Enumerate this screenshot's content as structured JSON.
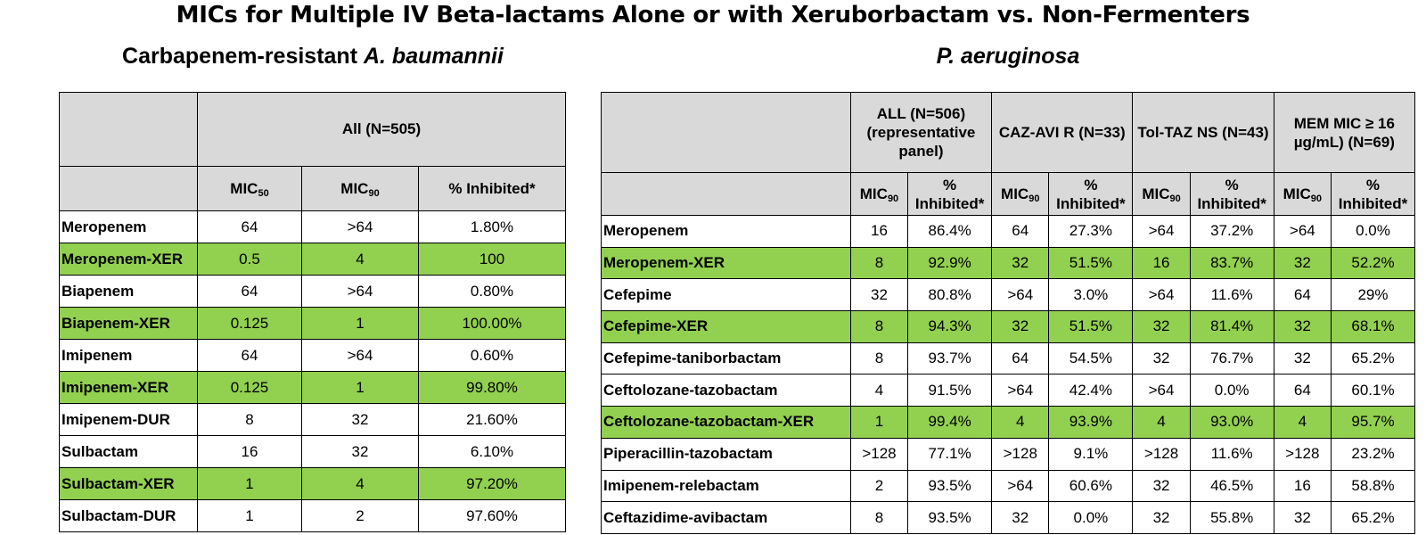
{
  "title": "MICs for Multiple IV Beta-lactams Alone or with Xeruborbactam vs. Non-Fermenters",
  "left": {
    "subtitle_prefix": "Carbapenem-resistant ",
    "subtitle_italic": "A. baumannii",
    "group_header": "All (N=505)",
    "col_headers": [
      {
        "base": "MIC",
        "sub": "50"
      },
      {
        "base": "MIC",
        "sub": "90"
      },
      {
        "base": "% Inhibited*",
        "sub": ""
      }
    ],
    "rows": [
      {
        "name": "Meropenem",
        "values": [
          "64",
          ">64",
          "1.80%"
        ],
        "xer": false
      },
      {
        "name": "Meropenem-XER",
        "values": [
          "0.5",
          "4",
          "100"
        ],
        "xer": true
      },
      {
        "name": "Biapenem",
        "values": [
          "64",
          ">64",
          "0.80%"
        ],
        "xer": false
      },
      {
        "name": "Biapenem-XER",
        "values": [
          "0.125",
          "1",
          "100.00%"
        ],
        "xer": true
      },
      {
        "name": "Imipenem",
        "values": [
          "64",
          ">64",
          "0.60%"
        ],
        "xer": false
      },
      {
        "name": "Imipenem-XER",
        "values": [
          "0.125",
          "1",
          "99.80%"
        ],
        "xer": true
      },
      {
        "name": "Imipenem-DUR",
        "values": [
          "8",
          "32",
          "21.60%"
        ],
        "xer": false
      },
      {
        "name": "Sulbactam",
        "values": [
          "16",
          "32",
          "6.10%"
        ],
        "xer": false
      },
      {
        "name": "Sulbactam-XER",
        "values": [
          "1",
          "4",
          "97.20%"
        ],
        "xer": true
      },
      {
        "name": "Sulbactam-DUR",
        "values": [
          "1",
          "2",
          "97.60%"
        ],
        "xer": false
      }
    ]
  },
  "right": {
    "subtitle_italic": "P. aeruginosa",
    "group_headers": [
      "ALL (N=506) (representative panel)",
      "CAZ-AVI R (N=33)",
      "Tol-TAZ NS (N=43)",
      "MEM MIC ≥ 16 µg/mL) (N=69)"
    ],
    "sub_headers": {
      "mic_base": "MIC",
      "mic_sub": "90",
      "pct": "% Inhibited*"
    },
    "rows": [
      {
        "name": "Meropenem",
        "values": [
          "16",
          "86.4%",
          "64",
          "27.3%",
          ">64",
          "37.2%",
          ">64",
          "0.0%"
        ],
        "xer": false
      },
      {
        "name": "Meropenem-XER",
        "values": [
          "8",
          "92.9%",
          "32",
          "51.5%",
          "16",
          "83.7%",
          "32",
          "52.2%"
        ],
        "xer": true
      },
      {
        "name": "Cefepime",
        "values": [
          "32",
          "80.8%",
          ">64",
          "3.0%",
          ">64",
          "11.6%",
          "64",
          "29%"
        ],
        "xer": false
      },
      {
        "name": "Cefepime-XER",
        "values": [
          "8",
          "94.3%",
          "32",
          "51.5%",
          "32",
          "81.4%",
          "32",
          "68.1%"
        ],
        "xer": true
      },
      {
        "name": "Cefepime-taniborbactam",
        "values": [
          "8",
          "93.7%",
          "64",
          "54.5%",
          "32",
          "76.7%",
          "32",
          "65.2%"
        ],
        "xer": false
      },
      {
        "name": "Ceftolozane-tazobactam",
        "values": [
          "4",
          "91.5%",
          ">64",
          "42.4%",
          ">64",
          "0.0%",
          "64",
          "60.1%"
        ],
        "xer": false
      },
      {
        "name": "Ceftolozane-tazobactam-XER",
        "values": [
          "1",
          "99.4%",
          "4",
          "93.9%",
          "4",
          "93.0%",
          "4",
          "95.7%"
        ],
        "xer": true
      },
      {
        "name": "Piperacillin-tazobactam",
        "values": [
          ">128",
          "77.1%",
          ">128",
          "9.1%",
          ">128",
          "11.6%",
          ">128",
          "23.2%"
        ],
        "xer": false
      },
      {
        "name": "Imipenem-relebactam",
        "values": [
          "2",
          "93.5%",
          ">64",
          "60.6%",
          "32",
          "46.5%",
          "16",
          "58.8%"
        ],
        "xer": false
      },
      {
        "name": "Ceftazidime-avibactam",
        "values": [
          "8",
          "93.5%",
          "32",
          "0.0%",
          "32",
          "55.8%",
          "32",
          "65.2%"
        ],
        "xer": false
      }
    ]
  },
  "colors": {
    "xer_highlight": "#92d050",
    "header_fill": "#d9d9d9"
  }
}
